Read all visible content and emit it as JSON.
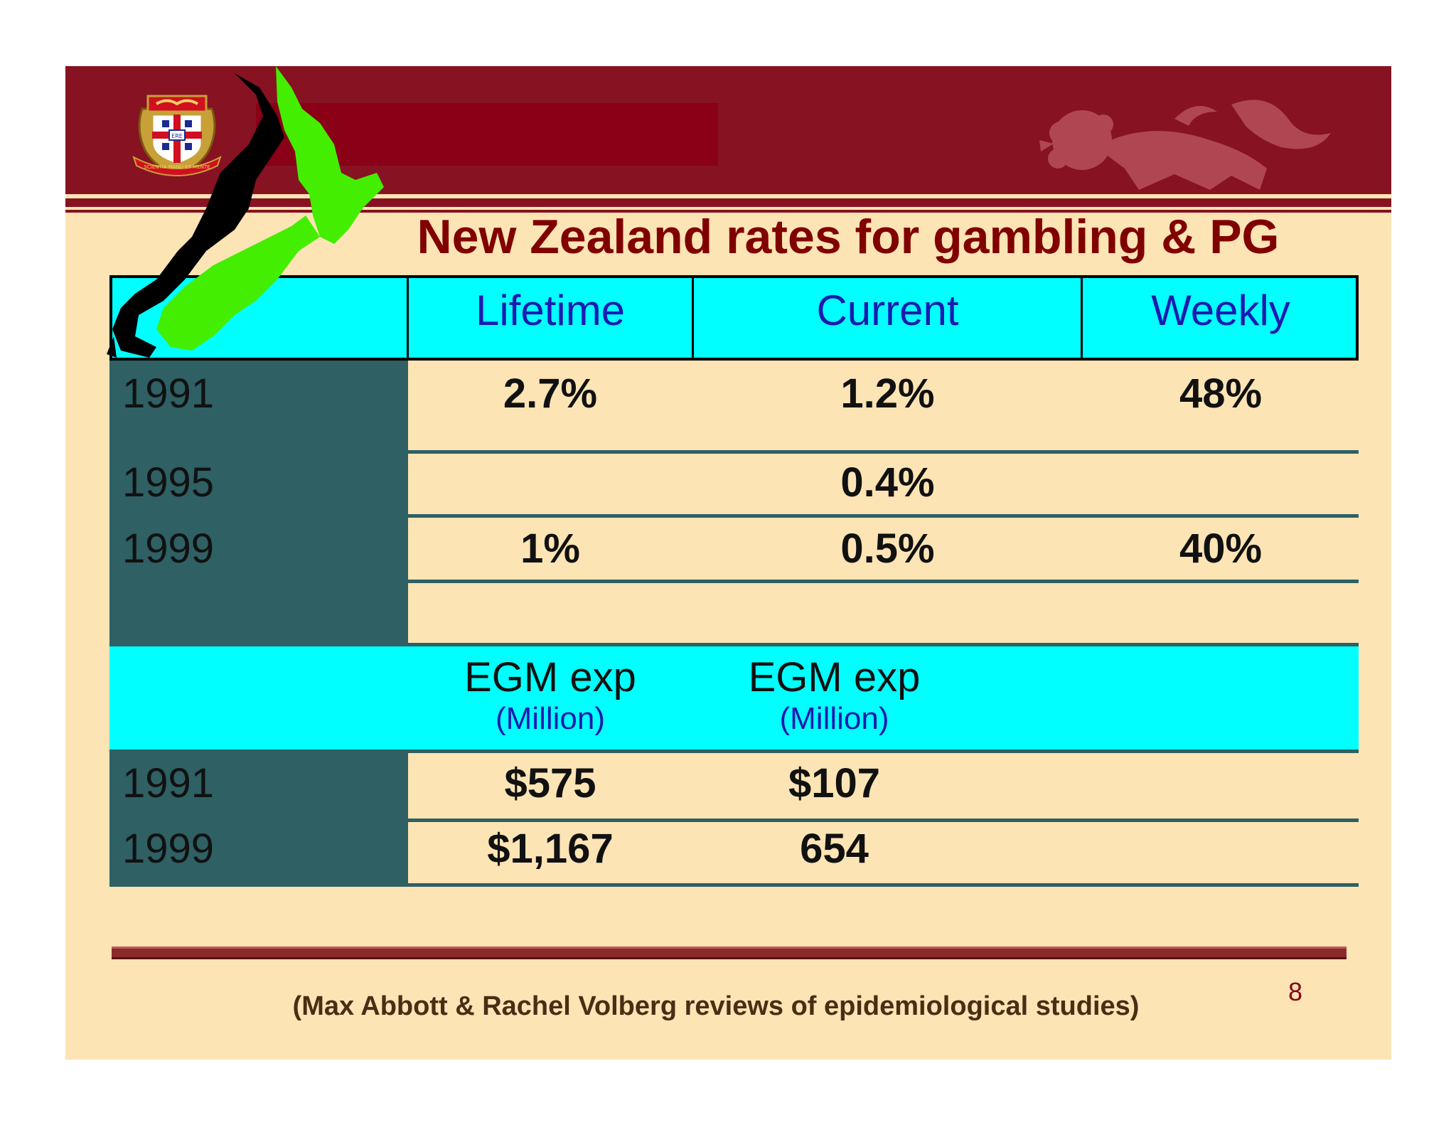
{
  "slide": {
    "title": "New Zealand rates for gambling & PG",
    "page_number": "8",
    "citation": "(Max Abbott & Rachel Volberg reviews of epidemiological studies)"
  },
  "header": {
    "crest_text": "SCIENTIA MANU ET MENTE",
    "crest_book_letters": "ERE"
  },
  "rates_table": {
    "columns": [
      "Lifetime",
      "Current",
      "Weekly"
    ],
    "rows": [
      {
        "year": "1991",
        "lifetime": "2.7%",
        "current": "1.2%",
        "weekly": "48%"
      },
      {
        "year": "1995",
        "lifetime": "",
        "current": "0.4%",
        "weekly": ""
      },
      {
        "year": "1999",
        "lifetime": "1%",
        "current": "0.5%",
        "weekly": "40%"
      }
    ]
  },
  "egm_table": {
    "columns": [
      {
        "label": "EGM exp",
        "sub": "(Million)"
      },
      {
        "label": "EGM exp",
        "sub": "(Million)"
      }
    ],
    "rows": [
      {
        "year": "1991",
        "col1": "$575",
        "col2": "$107"
      },
      {
        "year": "1999",
        "col1": "$1,167",
        "col2": "654"
      }
    ]
  },
  "colors": {
    "header_maroon": "#861222",
    "slide_background": "#fde4b5",
    "table_header_cyan": "#00ffff",
    "year_column_teal": "#2e6064",
    "title_red": "#800000",
    "header_text_blue": "#1b1bb0"
  }
}
